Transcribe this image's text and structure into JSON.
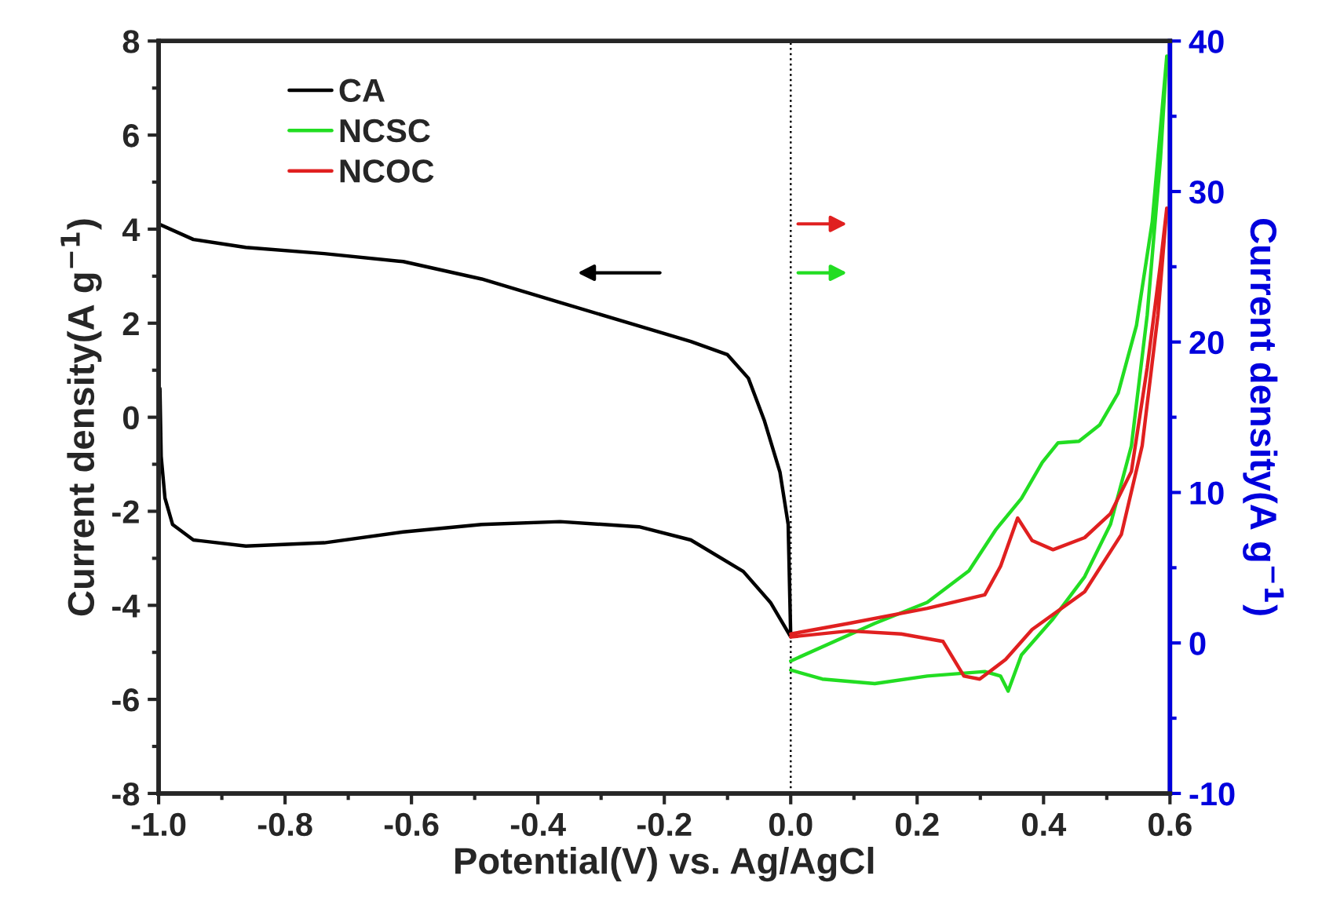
{
  "chart_data": {
    "type": "line",
    "xlabel": "Potential(V) vs. Ag/AgCl",
    "ylabel": "Current density(A g$^{−1}$)",
    "y2label": "Current density(A g$^{−1}$)",
    "xlim": [
      -1.0,
      0.6
    ],
    "xticks": [
      {
        "value": -1.0,
        "label": "-1.0"
      },
      {
        "value": -0.8,
        "label": "-0.8"
      },
      {
        "value": -0.6,
        "label": "-0.6"
      },
      {
        "value": -0.4,
        "label": "-0.4"
      },
      {
        "value": -0.2,
        "label": "-0.2"
      },
      {
        "value": 0.0,
        "label": "0.0"
      },
      {
        "value": 0.2,
        "label": "0.2"
      },
      {
        "value": 0.4,
        "label": "0.4"
      },
      {
        "value": 0.6,
        "label": "0.6"
      }
    ],
    "ylim": [
      -8,
      8
    ],
    "yticks": [
      -8,
      -6,
      -4,
      -2,
      0,
      2,
      4,
      6,
      8
    ],
    "y2lim": [
      -10,
      40
    ],
    "y2ticks": [
      -10,
      0,
      10,
      20,
      30,
      40
    ],
    "legend": "top left",
    "grid": false,
    "ref_lines": [
      {
        "axis": "x",
        "value": 0,
        "color": "#000000",
        "line_style": "dotted"
      }
    ],
    "series": [
      {
        "name": "CA",
        "color": "#000000",
        "x": [
          -1.0,
          -0.945,
          -0.862,
          -0.738,
          -0.613,
          -0.489,
          -0.365,
          -0.24,
          -0.158,
          -0.1,
          -0.067,
          -0.042,
          -0.017,
          -0.004,
          0.0,
          -0.032,
          -0.075,
          -0.158,
          -0.24,
          -0.365,
          -0.489,
          -0.613,
          -0.738,
          -0.862,
          -0.945,
          -0.978,
          -0.99,
          -0.996,
          -0.998
        ],
        "values": [
          4.11,
          3.78,
          3.61,
          3.48,
          3.31,
          2.94,
          2.44,
          1.94,
          1.61,
          1.33,
          0.83,
          -0.06,
          -1.17,
          -2.28,
          -4.67,
          -3.94,
          -3.28,
          -2.61,
          -2.33,
          -2.22,
          -2.28,
          -2.44,
          -2.67,
          -2.74,
          -2.61,
          -2.28,
          -1.72,
          -0.83,
          0.61
        ]
      },
      {
        "name": "NCSC",
        "color": "#22dd22",
        "axis": "y2",
        "x": [
          0.0,
          0.133,
          0.216,
          0.282,
          0.324,
          0.365,
          0.398,
          0.423,
          0.456,
          0.489,
          0.518,
          0.547,
          0.572,
          0.595,
          0.585,
          0.564,
          0.539,
          0.506,
          0.465,
          0.415,
          0.365,
          0.344,
          0.332,
          0.307,
          0.216,
          0.133,
          0.05,
          0.0
        ],
        "values": [
          -1.2,
          1.3,
          2.7,
          4.8,
          7.5,
          9.6,
          12.0,
          13.3,
          13.4,
          14.5,
          16.6,
          21.1,
          28.0,
          39.0,
          32.2,
          21.8,
          13.1,
          7.9,
          4.4,
          1.6,
          -0.8,
          -3.2,
          -2.2,
          -1.9,
          -2.2,
          -2.7,
          -2.4,
          -1.8
        ]
      },
      {
        "name": "NCOC",
        "color": "#e02020",
        "axis": "y2",
        "x": [
          0.0,
          0.092,
          0.216,
          0.307,
          0.332,
          0.359,
          0.382,
          0.415,
          0.465,
          0.506,
          0.539,
          0.564,
          0.585,
          0.595,
          0.581,
          0.556,
          0.523,
          0.465,
          0.382,
          0.34,
          0.299,
          0.274,
          0.241,
          0.175,
          0.092,
          0.0
        ],
        "values": [
          0.6,
          1.3,
          2.3,
          3.2,
          5.1,
          8.3,
          6.8,
          6.2,
          7.0,
          8.6,
          11.4,
          18.3,
          25.2,
          28.9,
          21.8,
          13.1,
          7.2,
          3.4,
          0.9,
          -1.1,
          -2.4,
          -2.2,
          0.1,
          0.6,
          0.8,
          0.4
        ]
      }
    ]
  }
}
